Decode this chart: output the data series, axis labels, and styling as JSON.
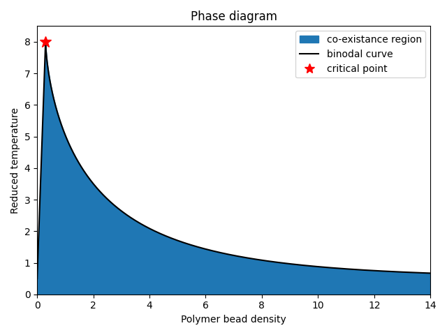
{
  "title": "Phase diagram",
  "xlabel": "Polymer bead density",
  "ylabel": "Reduced temperature",
  "xlim": [
    0,
    14
  ],
  "ylim": [
    0,
    8.5
  ],
  "critical_point_x": 0.3,
  "critical_point_y": 8.0,
  "fill_color": "#1f77b4",
  "curve_color": "black",
  "critical_color": "red",
  "legend_labels": [
    "co-existance region",
    "binodal curve",
    "critical point"
  ],
  "base_level": 0.5,
  "rho_start": 0.0,
  "rho_end": 14.0,
  "power_law_A": 2.1,
  "power_law_n": 0.72,
  "curve_linewidth": 1.5,
  "marker_size": 12
}
